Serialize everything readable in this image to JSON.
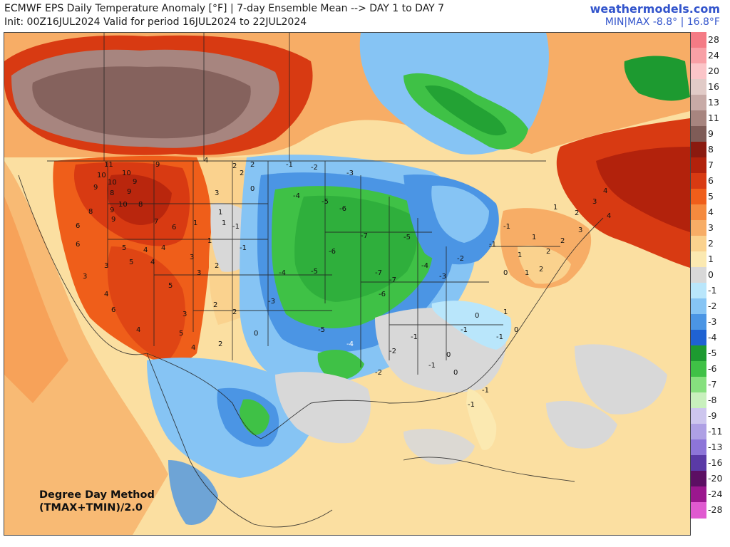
{
  "header": {
    "title_line1": "ECMWF EPS Daily Temperature Anomaly [°F] | 7-day Ensemble Mean --> DAY 1 to DAY 7",
    "title_line2": "Init: 00Z16JUL2024 Valid for period 16JUL2024 to 22JUL2024",
    "brand": "weathermodels.com",
    "minmax": "MIN|MAX -8.8° | 16.8°F"
  },
  "footer": {
    "method_line1": "Degree Day Method",
    "method_line2": "(TMAX+TMIN)/2.0"
  },
  "legend": {
    "unit": "°F",
    "labels": [
      "28",
      "24",
      "20",
      "16",
      "13",
      "11",
      "9",
      "8",
      "7",
      "6",
      "5",
      "4",
      "3",
      "2",
      "1",
      "0",
      "-1",
      "-2",
      "-3",
      "-4",
      "-5",
      "-6",
      "-7",
      "-8",
      "-9",
      "-11",
      "-13",
      "-16",
      "-20",
      "-24",
      "-28"
    ],
    "colors": [
      "#f47b85",
      "#f8a0a6",
      "#fbc5c8",
      "#e1cbc7",
      "#c7aaa6",
      "#a7857f",
      "#7f5c57",
      "#8a1a0f",
      "#b2220c",
      "#d83a12",
      "#ef5e1a",
      "#f58a3e",
      "#f7ad66",
      "#fad28e",
      "#fbe9b1",
      "#d8d8d8",
      "#b9e6fb",
      "#86c4f4",
      "#4b95e4",
      "#1f62d2",
      "#1d9a30",
      "#3fc146",
      "#86e07e",
      "#c8f0bd",
      "#cdc6ee",
      "#aea0e4",
      "#8d75d8",
      "#5a3aa6",
      "#5c0f63",
      "#9b178e",
      "#e05ad0"
    ]
  },
  "map": {
    "region": "North America",
    "anomaly_labels": {
      "pacific_northwest": [
        "11",
        "10",
        "10",
        "9",
        "10",
        "9",
        "9",
        "8",
        "9",
        "10",
        "9",
        "8",
        "8",
        "7",
        "9",
        "6",
        "6"
      ],
      "california_great_basin": [
        "6",
        "5",
        "4",
        "4",
        "3",
        "5",
        "4",
        "3",
        "6",
        "5",
        "4",
        "4",
        "5",
        "3",
        "4",
        "2"
      ],
      "rockies_plains": [
        "4",
        "3",
        "2",
        "2",
        "1",
        "0",
        "1",
        "-1",
        "-1",
        "0",
        "1",
        "2",
        "3",
        "2",
        "1",
        "2",
        "3",
        "2"
      ],
      "midwest_central": [
        "-1",
        "-2",
        "-3",
        "-4",
        "-5",
        "-6",
        "-7",
        "-7",
        "-6",
        "-5",
        "-4",
        "-3",
        "-7",
        "-6",
        "-5",
        "-4",
        "-3",
        "-2",
        "-4",
        "-5"
      ],
      "southeast": [
        "-2",
        "-1",
        "0",
        "-1",
        "-1",
        "0",
        "-1",
        "-2",
        "0",
        "-1",
        "1",
        "0",
        "-1"
      ],
      "northeast": [
        "1",
        "2",
        "3",
        "4",
        "3",
        "2",
        "4",
        "2",
        "1",
        "1",
        "0",
        "1",
        "2",
        "-1",
        "-1"
      ]
    }
  }
}
